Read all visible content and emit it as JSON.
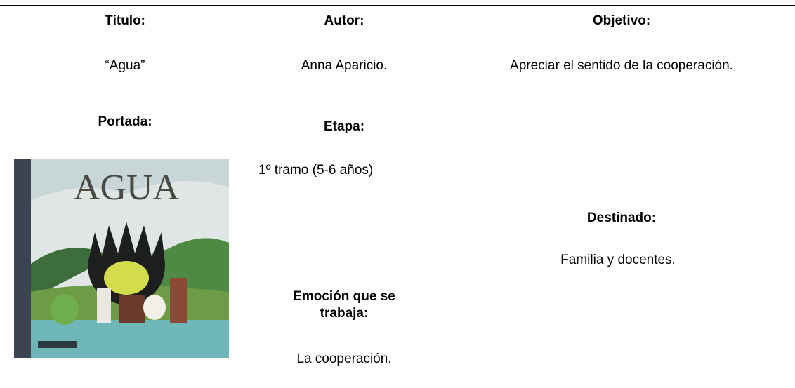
{
  "table": {
    "titulo": {
      "label": "Título:",
      "value": "“Agua”"
    },
    "autor": {
      "label": "Autor:",
      "value": "Anna Aparicio."
    },
    "objetivo": {
      "label": "Objetivo:",
      "value": "Apreciar el sentido de la cooperación."
    },
    "portada": {
      "label": "Portada:",
      "cover_title": "AGUA"
    },
    "etapa": {
      "label": "Etapa:",
      "value": "1º tramo (5-6 años)"
    },
    "destinado": {
      "label": "Destinado:",
      "value": "Familia y docentes."
    },
    "emocion": {
      "label": "Emoción que se trabaja:",
      "value": "La cooperación."
    }
  }
}
